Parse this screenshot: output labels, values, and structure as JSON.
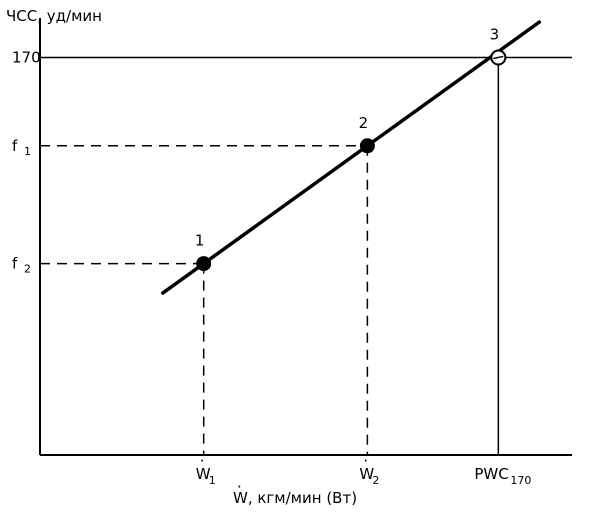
{
  "chart_data": {
    "type": "line",
    "ylabel": "ЧСС, уд/мин",
    "xlabel": "W, кгм/мин (Вт)",
    "xlabel_accent": "·",
    "y_ticks": [
      {
        "main": "170",
        "sub": "",
        "value": 170
      },
      {
        "main": "f",
        "sub": "1",
        "value": 140
      },
      {
        "main": "f",
        "sub": "2",
        "value": 100
      }
    ],
    "x_ticks": [
      {
        "main": "W",
        "sub": "1",
        "value": 1,
        "accent": "·"
      },
      {
        "main": "W",
        "sub": "2",
        "value": 2,
        "accent": "·"
      },
      {
        "main": "PWC",
        "sub": "170",
        "value": 2.8,
        "accent": ""
      }
    ],
    "points": [
      {
        "label": "1",
        "x": 1,
        "y": 100,
        "style": "filled"
      },
      {
        "label": "2",
        "x": 2,
        "y": 140,
        "style": "filled"
      },
      {
        "label": "3",
        "x": 2.8,
        "y": 170,
        "style": "open"
      }
    ],
    "line": {
      "x_start": 0.75,
      "x_end": 3.05
    },
    "xlim": [
      0,
      3.25
    ],
    "ylim": [
      35,
      180
    ],
    "grid": false
  }
}
